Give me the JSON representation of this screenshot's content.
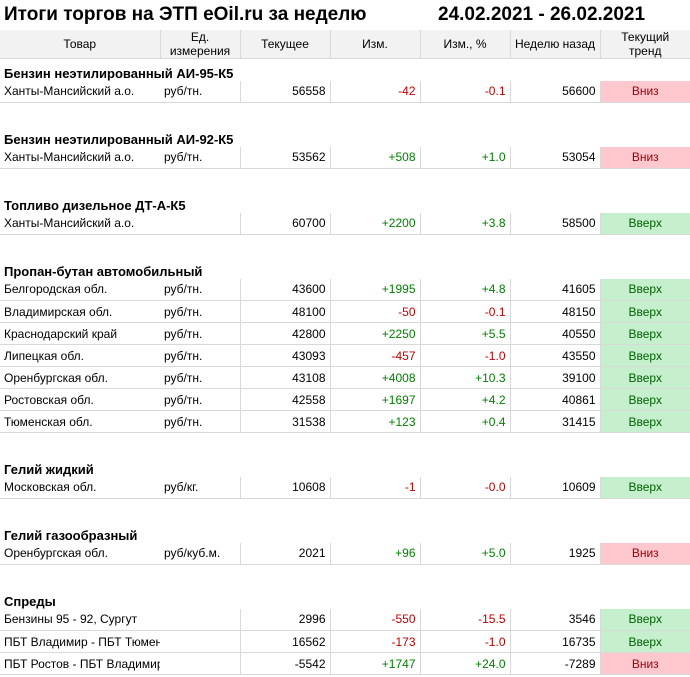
{
  "header": {
    "title": "Итоги торгов на ЭТП eOil.ru за неделю",
    "dates": "24.02.2021 - 26.02.2021"
  },
  "columns": [
    "Товар",
    "Ед. измерения",
    "Текущее",
    "Изм.",
    "Изм., %",
    "Неделю назад",
    "Текущий тренд"
  ],
  "sections": [
    {
      "title": "Бензин неэтилированный АИ-95-К5",
      "rows": [
        {
          "region": "Ханты-Мансийский а.о.",
          "unit": "руб/тн.",
          "current": "56558",
          "change": "-42",
          "change_pct": "-0.1",
          "week_ago": "56600",
          "trend": "Вниз"
        }
      ]
    },
    {
      "title": "Бензин неэтилированный АИ-92-К5",
      "rows": [
        {
          "region": "Ханты-Мансийский а.о.",
          "unit": "руб/тн.",
          "current": "53562",
          "change": "+508",
          "change_pct": "+1.0",
          "week_ago": "53054",
          "trend": "Вниз"
        }
      ]
    },
    {
      "title": "Топливо дизельное ДТ-А-К5",
      "rows": [
        {
          "region": "Ханты-Мансийский а.о.",
          "unit": "",
          "current": "60700",
          "change": "+2200",
          "change_pct": "+3.8",
          "week_ago": "58500",
          "trend": "Вверх"
        }
      ]
    },
    {
      "title": "Пропан-бутан автомобильный",
      "rows": [
        {
          "region": "Белгородская обл.",
          "unit": "руб/тн.",
          "current": "43600",
          "change": "+1995",
          "change_pct": "+4.8",
          "week_ago": "41605",
          "trend": "Вверх"
        },
        {
          "region": "Владимирская обл.",
          "unit": "руб/тн.",
          "current": "48100",
          "change": "-50",
          "change_pct": "-0.1",
          "week_ago": "48150",
          "trend": "Вверх"
        },
        {
          "region": "Краснодарский край",
          "unit": "руб/тн.",
          "current": "42800",
          "change": "+2250",
          "change_pct": "+5.5",
          "week_ago": "40550",
          "trend": "Вверх"
        },
        {
          "region": "Липецкая обл.",
          "unit": "руб/тн.",
          "current": "43093",
          "change": "-457",
          "change_pct": "-1.0",
          "week_ago": "43550",
          "trend": "Вверх"
        },
        {
          "region": "Оренбургская обл.",
          "unit": "руб/тн.",
          "current": "43108",
          "change": "+4008",
          "change_pct": "+10.3",
          "week_ago": "39100",
          "trend": "Вверх"
        },
        {
          "region": "Ростовская обл.",
          "unit": "руб/тн.",
          "current": "42558",
          "change": "+1697",
          "change_pct": "+4.2",
          "week_ago": "40861",
          "trend": "Вверх"
        },
        {
          "region": "Тюменская обл.",
          "unit": "руб/тн.",
          "current": "31538",
          "change": "+123",
          "change_pct": "+0.4",
          "week_ago": "31415",
          "trend": "Вверх"
        }
      ]
    },
    {
      "title": "Гелий жидкий",
      "rows": [
        {
          "region": "Московская обл.",
          "unit": "руб/кг.",
          "current": "10608",
          "change": "-1",
          "change_pct": "-0.0",
          "week_ago": "10609",
          "trend": "Вверх"
        }
      ]
    },
    {
      "title": "Гелий газообразный",
      "rows": [
        {
          "region": "Оренбургская обл.",
          "unit": "руб/куб.м.",
          "current": "2021",
          "change": "+96",
          "change_pct": "+5.0",
          "week_ago": "1925",
          "trend": "Вниз"
        }
      ]
    },
    {
      "title": "Спреды",
      "rows": [
        {
          "region": "Бензины 95 - 92, Сургут",
          "unit": "",
          "current": "2996",
          "change": "-550",
          "change_pct": "-15.5",
          "week_ago": "3546",
          "trend": "Вверх"
        },
        {
          "region": "ПБТ Владимир - ПБТ Тюмень",
          "unit": "",
          "current": "16562",
          "change": "-173",
          "change_pct": "-1.0",
          "week_ago": "16735",
          "trend": "Вверх"
        },
        {
          "region": "ПБТ Ростов - ПБТ Владимир",
          "unit": "",
          "current": "-5542",
          "change": "+1747",
          "change_pct": "+24.0",
          "week_ago": "-7289",
          "trend": "Вниз"
        }
      ]
    }
  ],
  "colors": {
    "positive_text": "#008000",
    "negative_text": "#c00000",
    "trend_up_bg": "#c6efce",
    "trend_down_bg": "#ffc7ce",
    "header_bg": "#f2f2f2"
  }
}
